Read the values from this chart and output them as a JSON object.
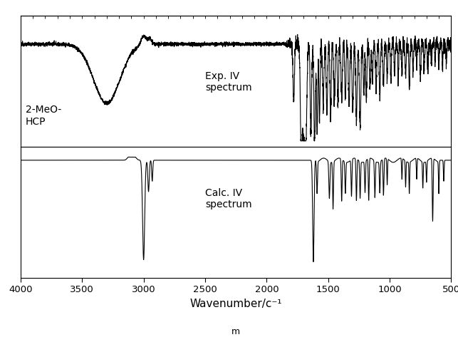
{
  "xlabel": "Wavenumber/c⁻¹",
  "xlabel_sub": "m",
  "xlim": [
    4000,
    500
  ],
  "xticks": [
    4000,
    3500,
    3000,
    2500,
    2000,
    1500,
    1000,
    500
  ],
  "label_exp": "Exp. IV\nspectrum",
  "label_calc": "Calc. IV\nspectrum",
  "label_compound": "2-MeO-\nHCP",
  "line_color": "#000000",
  "bg_color": "#ffffff",
  "linewidth": 0.8
}
